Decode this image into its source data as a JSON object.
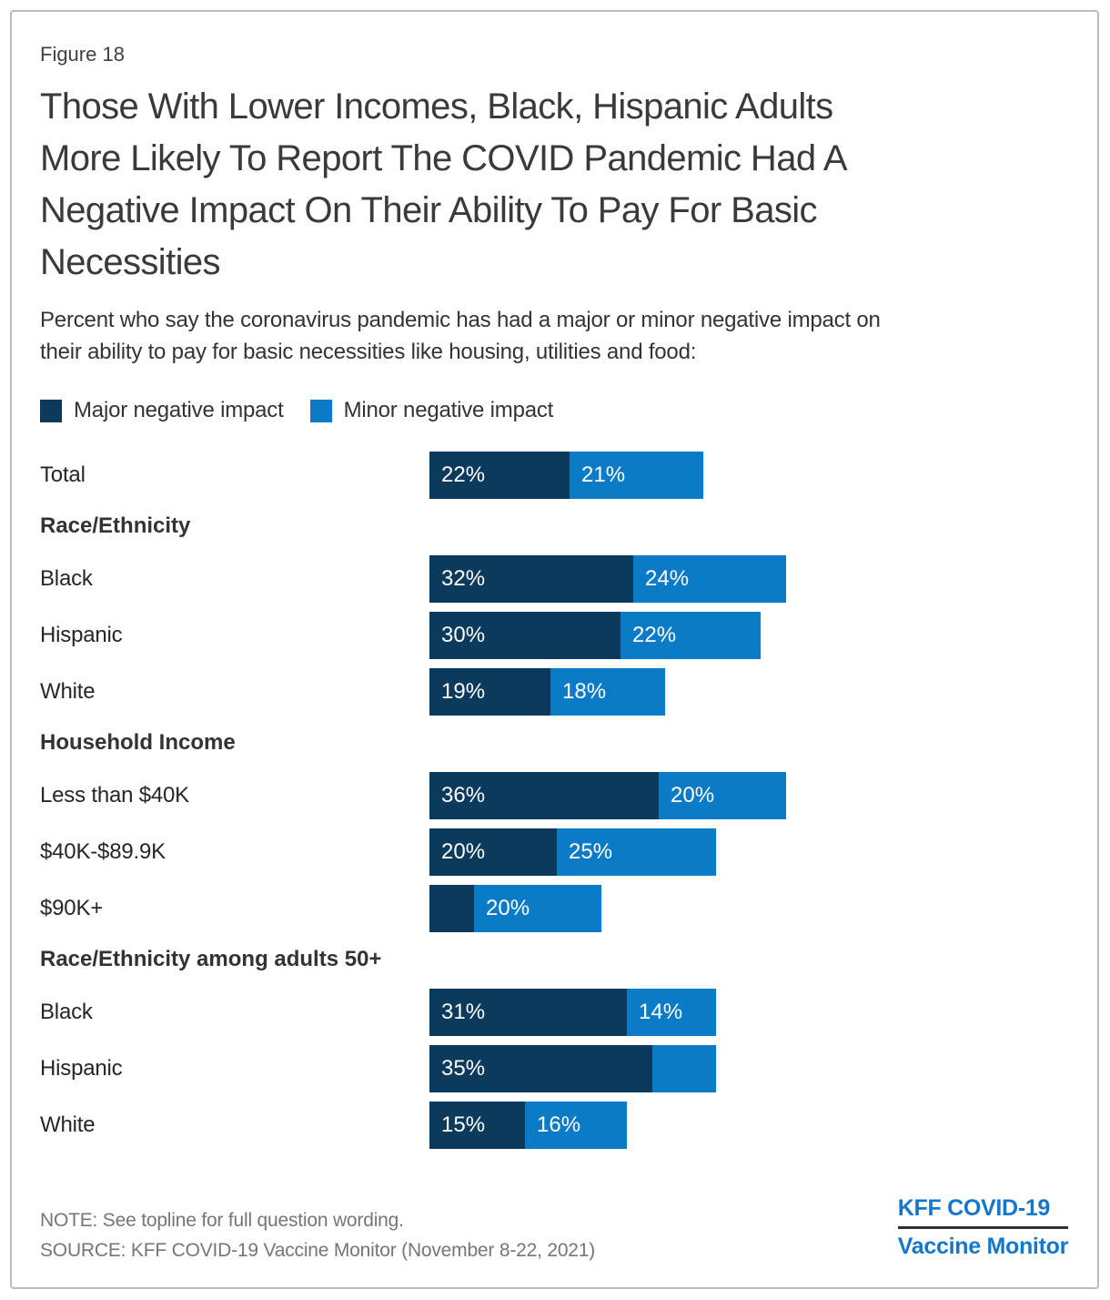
{
  "figure_label": "Figure 18",
  "title_lines": [
    "Those With Lower Incomes, Black, Hispanic Adults",
    "More Likely To Report The COVID Pandemic Had A",
    "Negative Impact On Their Ability To Pay For Basic",
    "Necessities"
  ],
  "subtitle_lines": [
    "Percent who say the coronavirus pandemic has had a major or minor negative impact on",
    "their ability to pay for basic necessities like housing, utilities and food:"
  ],
  "legend": {
    "major_label": "Major negative impact",
    "minor_label": "Minor negative impact"
  },
  "colors": {
    "major": "#0c3a5c",
    "minor": "#0b7bc7",
    "logo_blue": "#1377cd"
  },
  "chart_data": {
    "type": "bar",
    "orientation": "horizontal",
    "stacked": true,
    "unit": "percent",
    "series_names": [
      "Major negative impact",
      "Minor negative impact"
    ],
    "axis_note": "no visible axes or gridlines; values labeled inside bars, ~7px per percent",
    "groups": [
      {
        "header": null,
        "rows": [
          {
            "label": "Total",
            "major": 22,
            "minor": 21,
            "major_label": "22%",
            "minor_label": "21%"
          }
        ]
      },
      {
        "header": "Race/Ethnicity",
        "rows": [
          {
            "label": "Black",
            "major": 32,
            "minor": 24,
            "major_label": "32%",
            "minor_label": "24%"
          },
          {
            "label": "Hispanic",
            "major": 30,
            "minor": 22,
            "major_label": "30%",
            "minor_label": "22%"
          },
          {
            "label": "White",
            "major": 19,
            "minor": 18,
            "major_label": "19%",
            "minor_label": "18%"
          }
        ]
      },
      {
        "header": "Household Income",
        "rows": [
          {
            "label": "Less than $40K",
            "major": 36,
            "minor": 20,
            "major_label": "36%",
            "minor_label": "20%"
          },
          {
            "label": "$40K-$89.9K",
            "major": 20,
            "minor": 25,
            "major_label": "20%",
            "minor_label": "25%"
          },
          {
            "label": "$90K+",
            "major": 7,
            "minor": 20,
            "major_label": "",
            "minor_label": "20%"
          }
        ]
      },
      {
        "header": "Race/Ethnicity among adults 50+",
        "rows": [
          {
            "label": "Black",
            "major": 31,
            "minor": 14,
            "major_label": "31%",
            "minor_label": "14%"
          },
          {
            "label": "Hispanic",
            "major": 35,
            "minor": 10,
            "major_label": "35%",
            "minor_label": ""
          },
          {
            "label": "White",
            "major": 15,
            "minor": 16,
            "major_label": "15%",
            "minor_label": "16%"
          }
        ]
      }
    ]
  },
  "note": "NOTE: See topline for full question wording.",
  "source": "SOURCE: KFF COVID-19 Vaccine Monitor (November 8-22, 2021)",
  "logo": {
    "line1": "KFF COVID-19",
    "line2": "Vaccine Monitor"
  }
}
